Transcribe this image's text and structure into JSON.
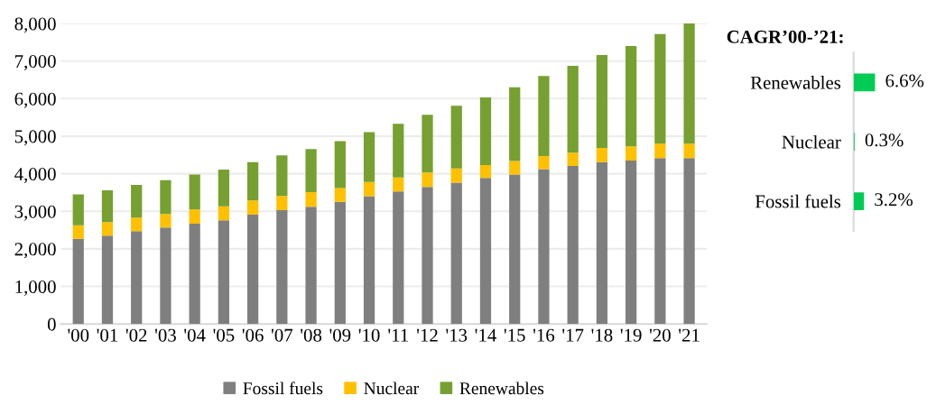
{
  "chart_data": [
    {
      "type": "bar",
      "stacked": true,
      "categories": [
        "'00",
        "'01",
        "'02",
        "'03",
        "'04",
        "'05",
        "'06",
        "'07",
        "'08",
        "'09",
        "'10",
        "'11",
        "'12",
        "'13",
        "'14",
        "'15",
        "'16",
        "'17",
        "'18",
        "'19",
        "'20",
        "'21"
      ],
      "series": [
        {
          "name": "Fossil fuels",
          "color": "#7f7f7f",
          "values": [
            2270,
            2350,
            2470,
            2570,
            2670,
            2760,
            2910,
            3030,
            3120,
            3250,
            3400,
            3530,
            3650,
            3760,
            3890,
            3980,
            4120,
            4210,
            4310,
            4350,
            4420,
            4420
          ]
        },
        {
          "name": "Nuclear",
          "color": "#ffc000",
          "values": [
            360,
            360,
            360,
            360,
            380,
            370,
            380,
            380,
            390,
            370,
            380,
            370,
            380,
            380,
            340,
            360,
            350,
            350,
            380,
            380,
            380,
            380
          ]
        },
        {
          "name": "Renewables",
          "color": "#76a030",
          "values": [
            820,
            850,
            870,
            900,
            930,
            980,
            1020,
            1080,
            1150,
            1250,
            1330,
            1430,
            1540,
            1670,
            1800,
            1960,
            2130,
            2310,
            2470,
            2670,
            2920,
            3200
          ]
        }
      ],
      "ylim": [
        0,
        8000
      ],
      "yticks": [
        0,
        {
          "value": 1000,
          "label": "1,000"
        },
        {
          "value": 2000,
          "label": "2,000"
        },
        {
          "value": 3000,
          "label": "3,000"
        },
        {
          "value": 4000,
          "label": "4,000"
        },
        {
          "value": 5000,
          "label": "5,000"
        },
        {
          "value": 6000,
          "label": "6,000"
        },
        {
          "value": 7000,
          "label": "7,000"
        },
        {
          "value": 8000,
          "label": "8,000"
        }
      ],
      "grid": "y",
      "legend": "bottom"
    },
    {
      "type": "bar",
      "orientation": "horizontal",
      "title": "CAGR’00-’21:",
      "categories": [
        "Renewables",
        "Nuclear",
        "Fossil fuels"
      ],
      "values": [
        6.6,
        0.3,
        3.2
      ],
      "color": "#00cc55",
      "value_labels": [
        "6.6%",
        "0.3%",
        "3.2%"
      ],
      "tick_labels": "y"
    }
  ]
}
